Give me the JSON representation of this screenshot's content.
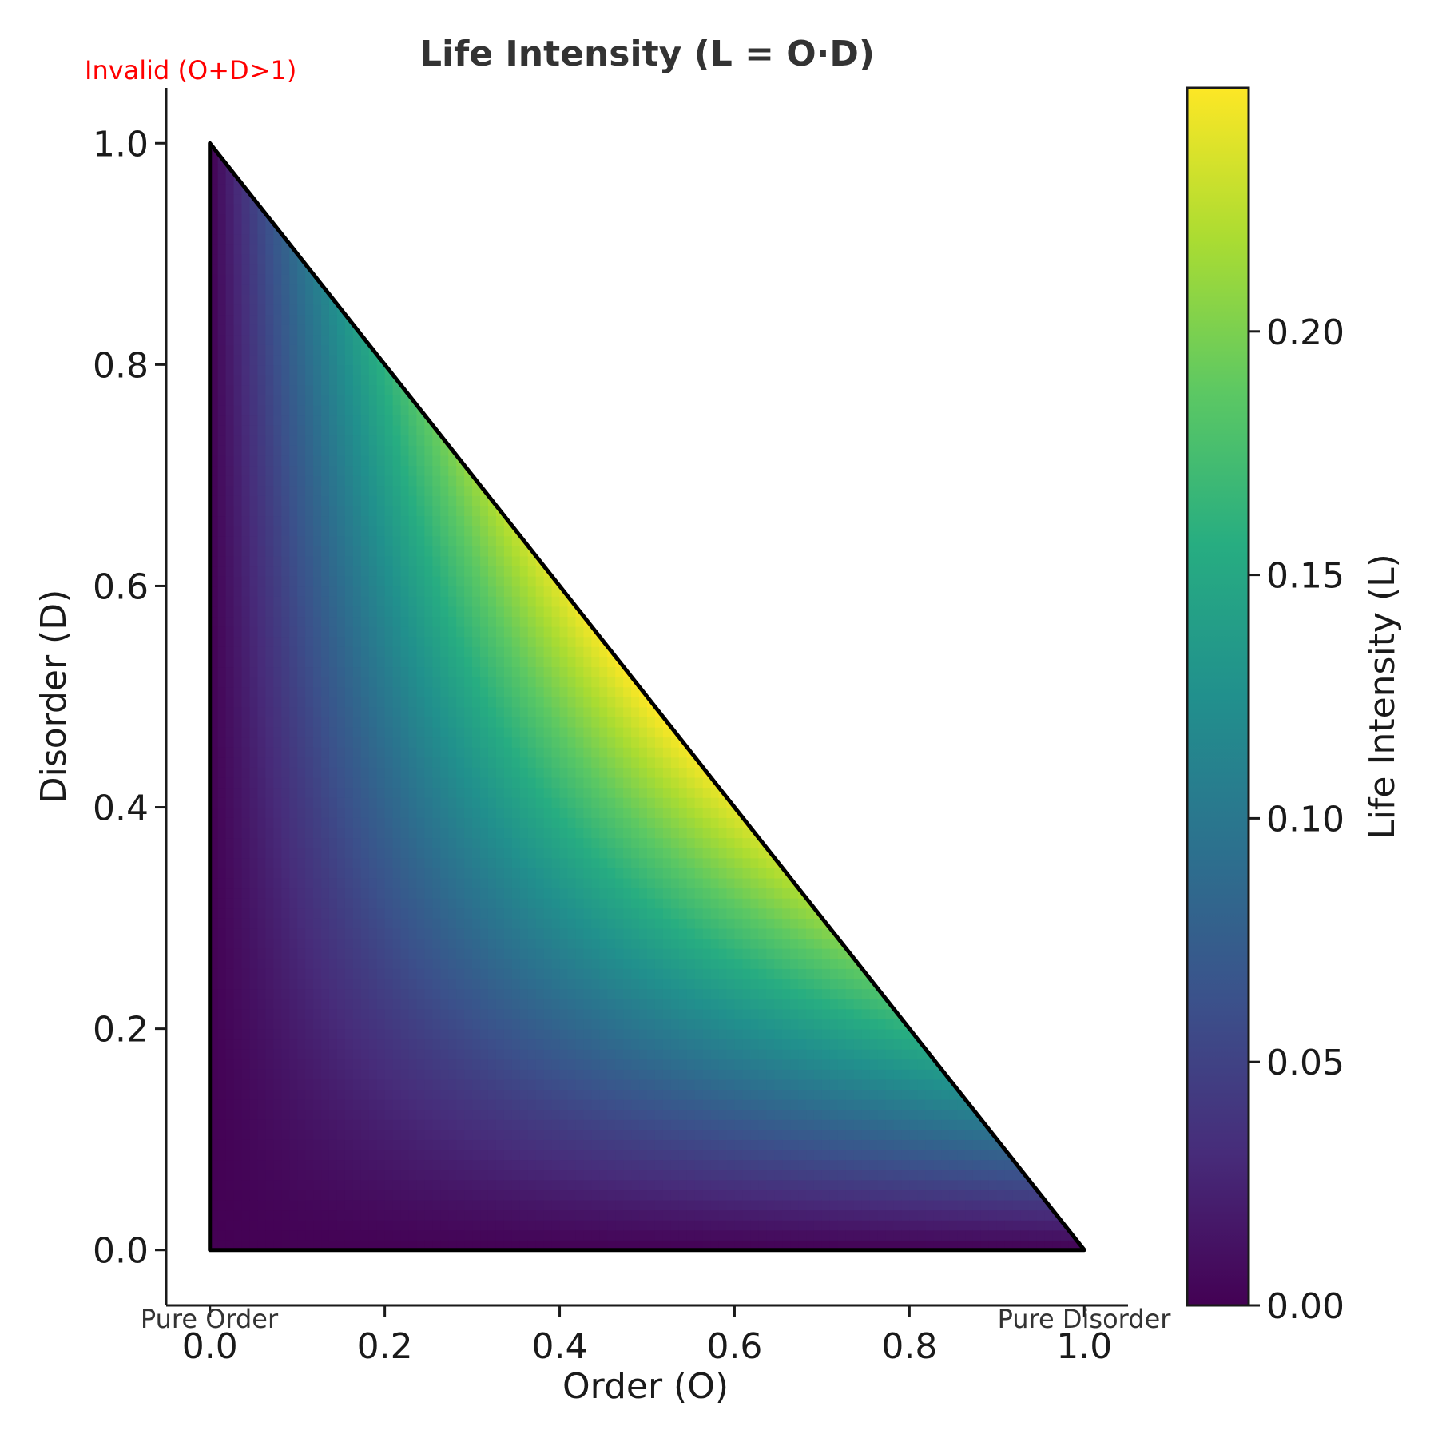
{
  "chart_data": {
    "type": "heatmap",
    "title": "Life Intensity (L = O·D)",
    "xlabel": "Order (O)",
    "ylabel": "Disorder (D)",
    "xlim": [
      -0.05,
      1.05
    ],
    "ylim": [
      -0.05,
      1.05
    ],
    "xticks": [
      "0.0",
      "0.2",
      "0.4",
      "0.6",
      "0.8",
      "1.0"
    ],
    "yticks": [
      "0.0",
      "0.2",
      "0.4",
      "0.6",
      "0.8",
      "1.0"
    ],
    "domain_vertices": [
      [
        0,
        0
      ],
      [
        1,
        0
      ],
      [
        0,
        1
      ]
    ],
    "colormap": "viridis",
    "colorbar": {
      "label": "Life Intensity (L)",
      "range": [
        0,
        0.25
      ],
      "ticks": [
        "0.00",
        "0.05",
        "0.10",
        "0.15",
        "0.20"
      ]
    },
    "annotations": {
      "invalid": "Invalid (O+D>1)",
      "pure_order": "Pure Order",
      "pure_disorder": "Pure Disorder"
    },
    "colors": {
      "invalid_text": "#ff0000",
      "outline": "#000000"
    }
  }
}
